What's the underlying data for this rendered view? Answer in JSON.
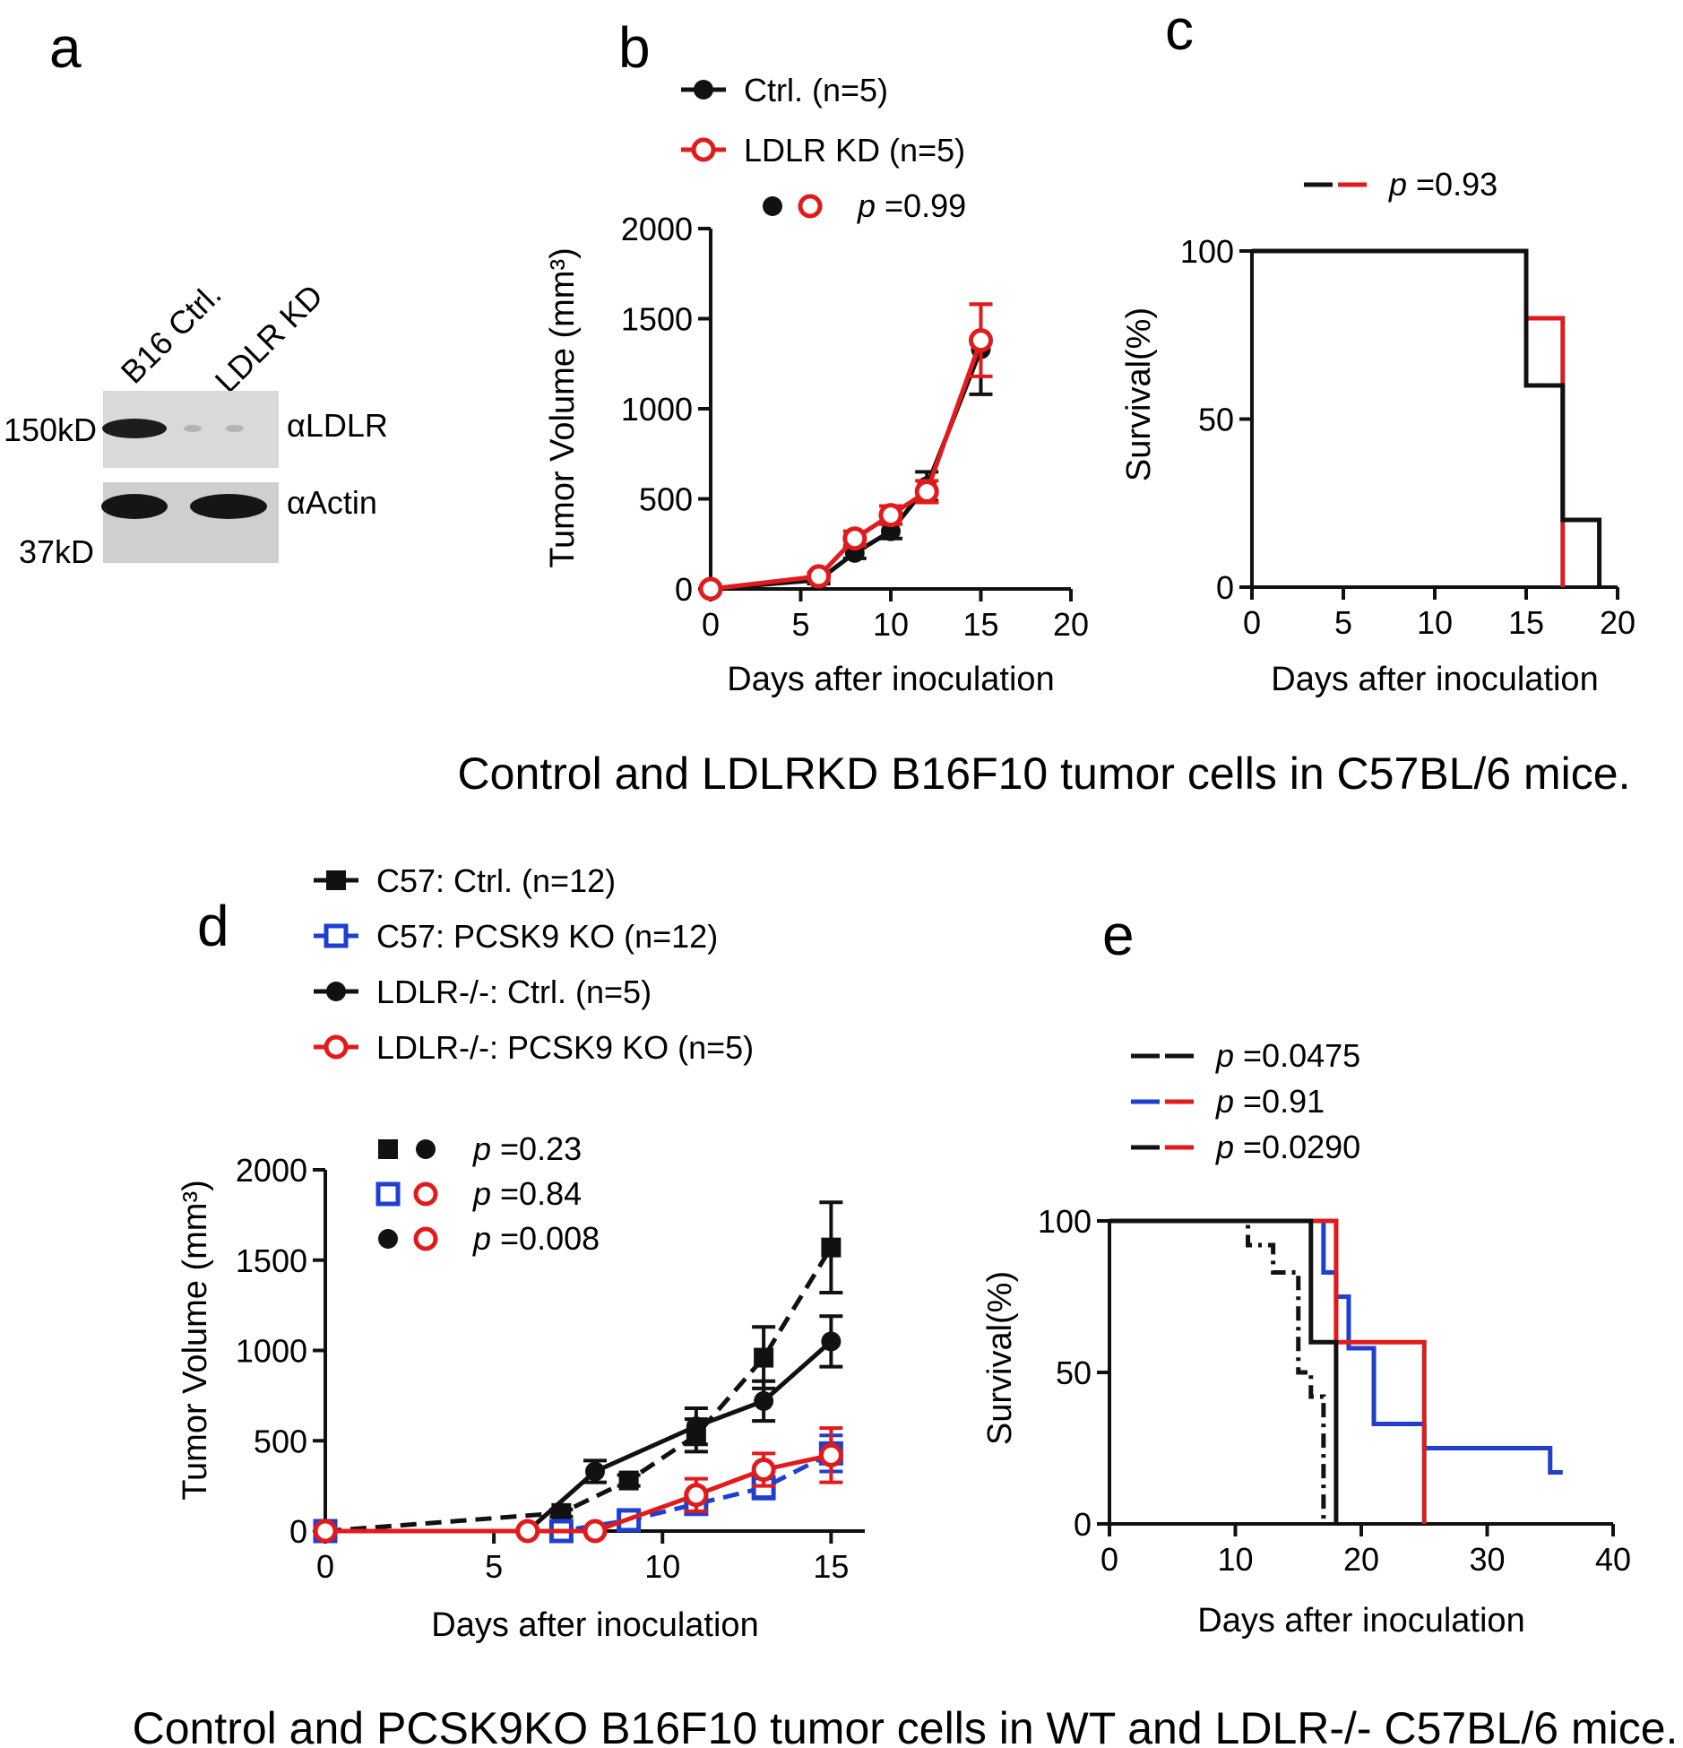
{
  "panel_letters": {
    "a": "a",
    "b": "b",
    "c": "c",
    "d": "d",
    "e": "e"
  },
  "captions": {
    "top": "Control and LDLRKD B16F10 tumor cells in C57BL/6 mice.",
    "bottom": "Control and PCSK9KO B16F10 tumor cells in WT and LDLR-/- C57BL/6 mice."
  },
  "western_blot": {
    "lanes": [
      "B16 Ctrl.",
      "LDLR KD"
    ],
    "bands": [
      {
        "marker": "150kD",
        "label": "αLDLR"
      },
      {
        "marker": "37kD",
        "label": "αActin"
      }
    ]
  },
  "chart_data": [
    {
      "id": "b",
      "type": "line",
      "xlabel": "Days after inoculation",
      "ylabel": "Tumor Volume (mm³)",
      "xlim": [
        0,
        20
      ],
      "ylim": [
        0,
        2000
      ],
      "xticks": [
        0,
        5,
        10,
        15,
        20
      ],
      "yticks": [
        0,
        500,
        1000,
        1500,
        2000
      ],
      "series": [
        {
          "name": "Ctrl. (n=5)",
          "color": "#111111",
          "marker": "filled-circle",
          "dash": "solid",
          "x": [
            0,
            6,
            8,
            10,
            12,
            15
          ],
          "y": [
            0,
            50,
            200,
            320,
            570,
            1330
          ],
          "err": [
            0,
            20,
            30,
            40,
            80,
            250
          ]
        },
        {
          "name": "LDLR KD (n=5)",
          "color": "#e31a1c",
          "marker": "open-circle",
          "dash": "solid",
          "x": [
            0,
            6,
            8,
            10,
            12,
            15
          ],
          "y": [
            0,
            70,
            280,
            410,
            540,
            1380
          ],
          "err": [
            0,
            20,
            40,
            50,
            60,
            200
          ]
        }
      ],
      "stats": [
        {
          "markers": [
            "filled-circle-black",
            "open-circle-red"
          ],
          "p_label": "p",
          "p_value": " =0.99"
        }
      ]
    },
    {
      "id": "c",
      "type": "step",
      "xlabel": "Days after inoculation",
      "ylabel": "Survival(%)",
      "xlim": [
        0,
        20
      ],
      "ylim": [
        0,
        100
      ],
      "xticks": [
        0,
        5,
        10,
        15,
        20
      ],
      "yticks": [
        0,
        50,
        100
      ],
      "series": [
        {
          "color": "#e31a1c",
          "dash": "solid",
          "x": [
            0,
            15,
            15,
            17,
            17
          ],
          "y": [
            100,
            100,
            80,
            80,
            0
          ]
        },
        {
          "color": "#111111",
          "dash": "solid",
          "x": [
            0,
            15,
            15,
            17,
            17,
            19,
            19
          ],
          "y": [
            100,
            100,
            60,
            60,
            20,
            20,
            0
          ]
        }
      ],
      "stats": [
        {
          "colors": [
            "#111111",
            "#e31a1c"
          ],
          "p_label": "p",
          "p_value": " =0.93"
        }
      ]
    },
    {
      "id": "d",
      "type": "line",
      "xlabel": "Days after inoculation",
      "ylabel": "Tumor Volume (mm³)",
      "xlim": [
        0,
        16
      ],
      "ylim": [
        0,
        2000
      ],
      "xticks": [
        0,
        5,
        10,
        15
      ],
      "yticks": [
        0,
        500,
        1000,
        1500,
        2000
      ],
      "series": [
        {
          "name": "C57: Ctrl. (n=12)",
          "color": "#111111",
          "marker": "filled-square",
          "dash": "dashed",
          "x": [
            0,
            7,
            9,
            11,
            13,
            15
          ],
          "y": [
            0,
            100,
            280,
            530,
            960,
            1570
          ],
          "err": [
            0,
            20,
            30,
            90,
            170,
            250
          ]
        },
        {
          "name": "C57: PCSK9 KO (n=12)",
          "color": "#1f3fd1",
          "marker": "open-square",
          "dash": "dashed",
          "x": [
            0,
            7,
            9,
            11,
            13,
            15
          ],
          "y": [
            0,
            0,
            60,
            150,
            240,
            430
          ],
          "err": [
            0,
            10,
            20,
            40,
            60,
            100
          ]
        },
        {
          "name": "LDLR-/-: Ctrl. (n=5)",
          "color": "#111111",
          "marker": "filled-circle",
          "dash": "solid",
          "x": [
            0,
            6,
            8,
            11,
            13,
            15
          ],
          "y": [
            0,
            0,
            330,
            580,
            720,
            1050
          ],
          "err": [
            0,
            10,
            60,
            100,
            110,
            140
          ]
        },
        {
          "name": "LDLR-/-: PCSK9 KO (n=5)",
          "color": "#e31a1c",
          "marker": "open-circle",
          "dash": "solid",
          "x": [
            0,
            6,
            8,
            11,
            13,
            15
          ],
          "y": [
            0,
            0,
            0,
            200,
            340,
            420
          ],
          "err": [
            0,
            10,
            10,
            90,
            90,
            150
          ]
        }
      ],
      "stats": [
        {
          "markers": [
            "filled-square-black",
            "filled-circle-black"
          ],
          "p_label": "p",
          "p_value": " =0.23"
        },
        {
          "markers": [
            "open-square-blue",
            "open-circle-red"
          ],
          "p_label": "p",
          "p_value": " =0.84"
        },
        {
          "markers": [
            "filled-circle-black",
            "open-circle-red"
          ],
          "p_label": "p",
          "p_value": " =0.008"
        }
      ]
    },
    {
      "id": "e",
      "type": "step",
      "xlabel": "Days after inoculation",
      "ylabel": "Survival(%)",
      "xlim": [
        0,
        40
      ],
      "ylim": [
        0,
        100
      ],
      "xticks": [
        0,
        10,
        20,
        30,
        40
      ],
      "yticks": [
        0,
        50,
        100
      ],
      "series": [
        {
          "color": "#111111",
          "dash": "dashdot",
          "x": [
            0,
            11,
            11,
            13,
            13,
            15,
            15,
            16,
            16,
            17,
            17
          ],
          "y": [
            100,
            100,
            92,
            92,
            83,
            83,
            50,
            50,
            42,
            42,
            0
          ]
        },
        {
          "color": "#1f3fd1",
          "dash": "solid",
          "x": [
            0,
            17,
            17,
            18,
            18,
            19,
            19,
            21,
            21,
            25,
            25,
            35,
            35,
            36
          ],
          "y": [
            100,
            100,
            83,
            83,
            75,
            75,
            58,
            58,
            33,
            33,
            25,
            25,
            17,
            17
          ]
        },
        {
          "color": "#e31a1c",
          "dash": "solid",
          "x": [
            0,
            18,
            18,
            25,
            25
          ],
          "y": [
            100,
            100,
            60,
            60,
            0
          ]
        },
        {
          "color": "#111111",
          "dash": "solid",
          "x": [
            0,
            16,
            16,
            18,
            18
          ],
          "y": [
            100,
            100,
            60,
            60,
            0
          ]
        }
      ],
      "stats": [
        {
          "colors": [
            "#111111",
            "#111111"
          ],
          "dash": [
            "dashdot",
            "solid"
          ],
          "p_label": "p",
          "p_value": " =0.0475"
        },
        {
          "colors": [
            "#1f3fd1",
            "#e31a1c"
          ],
          "dash": [
            "solid",
            "solid"
          ],
          "p_label": "p",
          "p_value": " =0.91"
        },
        {
          "colors": [
            "#111111",
            "#e31a1c"
          ],
          "dash": [
            "solid",
            "solid"
          ],
          "p_label": "p",
          "p_value": " =0.0290"
        }
      ]
    }
  ]
}
